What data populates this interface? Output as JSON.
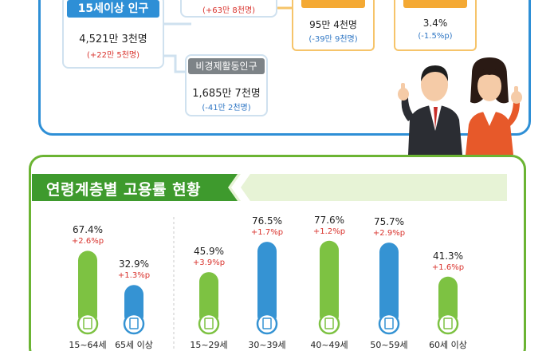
{
  "population": {
    "total": {
      "label": "15세이상 인구",
      "value": "4,521만 3천명",
      "change": "(+22만 5천명)"
    },
    "active_change": "(+63만 8천명)",
    "inactive": {
      "label": "비경제활동인구",
      "value": "1,685만 7천명",
      "change": "(-41만 2천명)"
    },
    "unemployed": {
      "value": "95만 4천명",
      "change": "(-39만 9천명)"
    },
    "unemployment_rate": {
      "value": "3.4%",
      "change": "(-1.5%p)"
    }
  },
  "chart_data": {
    "type": "bar",
    "title": "연령계층별 고용률 현황",
    "categories": [
      "15~64세",
      "65세 이상",
      "15~29세",
      "30~39세",
      "40~49세",
      "50~59세",
      "60세 이상"
    ],
    "values": [
      67.4,
      32.9,
      45.9,
      76.5,
      77.6,
      75.7,
      41.3
    ],
    "value_labels": [
      "67.4%",
      "32.9%",
      "45.9%",
      "76.5%",
      "77.6%",
      "75.7%",
      "41.3%"
    ],
    "changes": [
      "+2.6%p",
      "+1.3%p",
      "+3.9%p",
      "+1.7%p",
      "+1.2%p",
      "+2.9%p",
      "+1.6%p"
    ],
    "bar_colors": [
      "#7dc242",
      "#3593d3",
      "#7dc242",
      "#3593d3",
      "#7dc242",
      "#3593d3",
      "#7dc242"
    ]
  }
}
